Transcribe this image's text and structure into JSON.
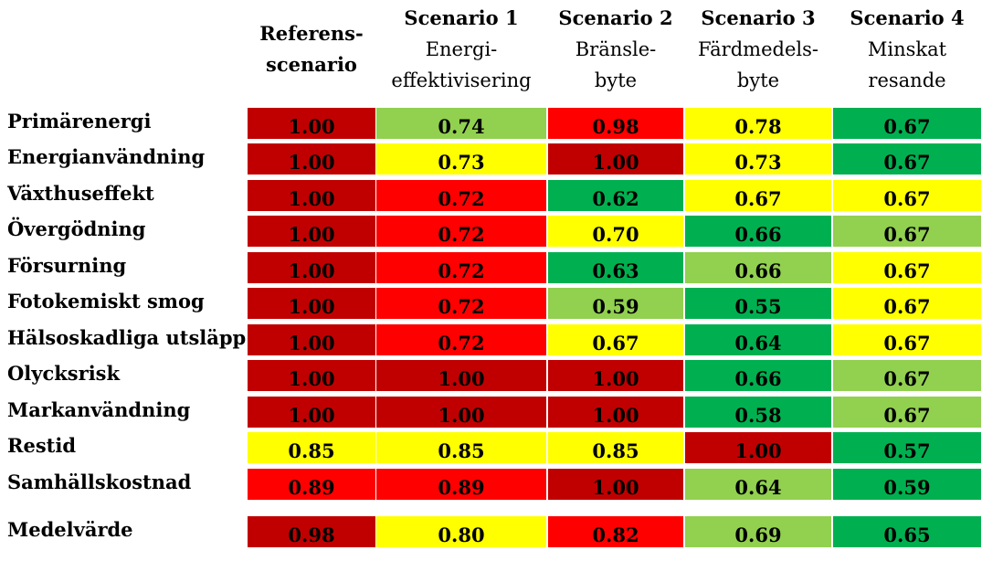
{
  "columns": [
    {
      "title": "Referens-",
      "sub": [
        "scenario"
      ],
      "title_bold_lines": true
    },
    {
      "title": "Scenario 1",
      "sub": [
        "Energi-",
        "effektivisering"
      ]
    },
    {
      "title": "Scenario 2",
      "sub": [
        "Bränsle-",
        "byte"
      ]
    },
    {
      "title": "Scenario 3",
      "sub": [
        "Färdmedels-",
        "byte"
      ]
    },
    {
      "title": "Scenario 4",
      "sub": [
        "Minskat",
        "resande"
      ]
    }
  ],
  "colors": {
    "dark_red": "#c00000",
    "red": "#ff0000",
    "yellow": "#ffff00",
    "light_green": "#92d050",
    "green": "#00b050"
  },
  "chart_data": {
    "type": "table",
    "categories": [
      "Referensscenario",
      "Scenario 1",
      "Scenario 2",
      "Scenario 3",
      "Scenario 4"
    ],
    "rows": [
      {
        "label": "Primärenergi",
        "values": [
          "1.00",
          "0.74",
          "0.98",
          "0.78",
          "0.67"
        ],
        "colors": [
          "dark_red",
          "light_green",
          "red",
          "yellow",
          "green"
        ]
      },
      {
        "label": "Energianvändning",
        "values": [
          "1.00",
          "0.73",
          "1.00",
          "0.73",
          "0.67"
        ],
        "colors": [
          "dark_red",
          "yellow",
          "dark_red",
          "yellow",
          "green"
        ]
      },
      {
        "label": "Växthuseffekt",
        "values": [
          "1.00",
          "0.72",
          "0.62",
          "0.67",
          "0.67"
        ],
        "colors": [
          "dark_red",
          "red",
          "green",
          "yellow",
          "yellow"
        ]
      },
      {
        "label": "Övergödning",
        "values": [
          "1.00",
          "0.72",
          "0.70",
          "0.66",
          "0.67"
        ],
        "colors": [
          "dark_red",
          "red",
          "yellow",
          "green",
          "light_green"
        ]
      },
      {
        "label": "Försurning",
        "values": [
          "1.00",
          "0.72",
          "0.63",
          "0.66",
          "0.67"
        ],
        "colors": [
          "dark_red",
          "red",
          "green",
          "light_green",
          "yellow"
        ]
      },
      {
        "label": "Fotokemiskt smog",
        "values": [
          "1.00",
          "0.72",
          "0.59",
          "0.55",
          "0.67"
        ],
        "colors": [
          "dark_red",
          "red",
          "light_green",
          "green",
          "yellow"
        ]
      },
      {
        "label": "Hälsoskadliga utsläpp",
        "values": [
          "1.00",
          "0.72",
          "0.67",
          "0.64",
          "0.67"
        ],
        "colors": [
          "dark_red",
          "red",
          "yellow",
          "green",
          "yellow"
        ]
      },
      {
        "label": "Olycksrisk",
        "values": [
          "1.00",
          "1.00",
          "1.00",
          "0.66",
          "0.67"
        ],
        "colors": [
          "dark_red",
          "dark_red",
          "dark_red",
          "green",
          "light_green"
        ]
      },
      {
        "label": "Markanvändning",
        "values": [
          "1.00",
          "1.00",
          "1.00",
          "0.58",
          "0.67"
        ],
        "colors": [
          "dark_red",
          "dark_red",
          "dark_red",
          "green",
          "light_green"
        ]
      },
      {
        "label": "Restid",
        "values": [
          "0.85",
          "0.85",
          "0.85",
          "1.00",
          "0.57"
        ],
        "colors": [
          "yellow",
          "yellow",
          "yellow",
          "dark_red",
          "green"
        ]
      },
      {
        "label": "Samhällskostnad",
        "values": [
          "0.89",
          "0.89",
          "1.00",
          "0.64",
          "0.59"
        ],
        "colors": [
          "red",
          "red",
          "dark_red",
          "light_green",
          "green"
        ]
      },
      {
        "label": "Medelvärde",
        "values": [
          "0.98",
          "0.80",
          "0.82",
          "0.69",
          "0.65"
        ],
        "colors": [
          "dark_red",
          "yellow",
          "red",
          "light_green",
          "green"
        ]
      }
    ]
  }
}
